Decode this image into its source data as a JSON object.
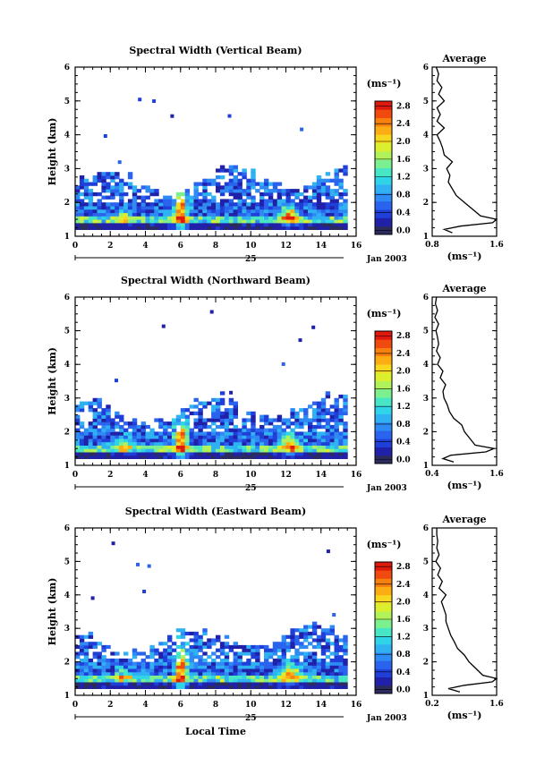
{
  "chart_data": [
    {
      "type": "heatmap",
      "title": "Spectral Width (Vertical Beam)",
      "ylabel": "Height (km)",
      "xlabel": "",
      "xlim": [
        0,
        16
      ],
      "ylim": [
        1,
        6
      ],
      "xticks": [
        "0",
        "2",
        "4",
        "6",
        "8",
        "10",
        "12",
        "14",
        "16"
      ],
      "yticks": [
        "1",
        "2",
        "3",
        "4",
        "5",
        "6"
      ],
      "date_day": "25",
      "date_label": "Jan 2003",
      "colorbar": {
        "unit": "(ms⁻¹)",
        "ticks": [
          "0.0",
          "0.4",
          "0.8",
          "1.2",
          "1.6",
          "2.0",
          "2.4",
          "2.8"
        ],
        "range": [
          0.0,
          3.0
        ]
      },
      "profile": {
        "title": "Average",
        "xlabel": "(ms⁻¹)",
        "xticks": [
          "0.8",
          "1.6"
        ],
        "xlim": [
          0.8,
          1.6
        ],
        "ylim": [
          1,
          6
        ],
        "yticks": [
          "1",
          "2",
          "3",
          "4",
          "5",
          "6"
        ],
        "height": [
          1.1,
          1.2,
          1.3,
          1.4,
          1.5,
          1.6,
          1.8,
          2.0,
          2.2,
          2.4,
          2.6,
          2.8,
          3.0,
          3.2,
          3.4,
          3.6,
          3.8,
          4.0,
          4.2,
          4.4,
          4.6,
          4.8,
          5.0,
          5.2,
          5.4,
          5.6,
          5.8,
          6.0
        ],
        "width": [
          1.05,
          0.95,
          1.15,
          1.55,
          1.6,
          1.4,
          1.3,
          1.2,
          1.1,
          1.05,
          1.0,
          1.02,
          0.98,
          1.05,
          0.95,
          0.93,
          0.9,
          0.86,
          0.95,
          0.86,
          0.9,
          0.86,
          0.95,
          0.88,
          0.92,
          0.86,
          0.88,
          0.85
        ]
      }
    },
    {
      "type": "heatmap",
      "title": "Spectral Width (Northward Beam)",
      "ylabel": "Height (km)",
      "xlabel": "",
      "xlim": [
        0,
        16
      ],
      "ylim": [
        1,
        6
      ],
      "xticks": [
        "0",
        "2",
        "4",
        "6",
        "8",
        "10",
        "12",
        "14",
        "16"
      ],
      "yticks": [
        "1",
        "2",
        "3",
        "4",
        "5",
        "6"
      ],
      "date_day": "25",
      "date_label": "Jan 2003",
      "colorbar": {
        "unit": "(ms⁻¹)",
        "ticks": [
          "0.0",
          "0.4",
          "0.8",
          "1.2",
          "1.6",
          "2.0",
          "2.4",
          "2.8"
        ],
        "range": [
          0.0,
          3.0
        ]
      },
      "profile": {
        "title": "Average",
        "xlabel": "(ms⁻¹)",
        "xticks": [
          "0.4",
          "1.6"
        ],
        "xlim": [
          0.4,
          1.6
        ],
        "ylim": [
          1,
          6
        ],
        "yticks": [
          "1",
          "2",
          "3",
          "4",
          "5",
          "6"
        ],
        "height": [
          1.1,
          1.2,
          1.3,
          1.4,
          1.5,
          1.6,
          1.8,
          2.0,
          2.2,
          2.4,
          2.6,
          2.8,
          3.0,
          3.2,
          3.4,
          3.6,
          3.8,
          4.0,
          4.2,
          4.4,
          4.6,
          4.8,
          5.0,
          5.2,
          5.4,
          5.6,
          5.8,
          6.0
        ],
        "width": [
          0.8,
          0.6,
          0.75,
          1.4,
          1.55,
          1.2,
          1.1,
          1.0,
          0.95,
          0.8,
          0.72,
          0.68,
          0.62,
          0.6,
          0.65,
          0.55,
          0.6,
          0.5,
          0.55,
          0.48,
          0.52,
          0.5,
          0.47,
          0.52,
          0.45,
          0.5,
          0.46,
          0.48
        ]
      }
    },
    {
      "type": "heatmap",
      "title": "Spectral Width (Eastward Beam)",
      "ylabel": "Height (km)",
      "xlabel": "Local Time",
      "xlim": [
        0,
        16
      ],
      "ylim": [
        1,
        6
      ],
      "xticks": [
        "0",
        "2",
        "4",
        "6",
        "8",
        "10",
        "12",
        "14",
        "16"
      ],
      "yticks": [
        "1",
        "2",
        "3",
        "4",
        "5",
        "6"
      ],
      "date_day": "25",
      "date_label": "Jan 2003",
      "colorbar": {
        "unit": "(ms⁻¹)",
        "ticks": [
          "0.0",
          "0.4",
          "0.8",
          "1.2",
          "1.6",
          "2.0",
          "2.4",
          "2.8"
        ],
        "range": [
          0.0,
          3.0
        ]
      },
      "profile": {
        "title": "Average",
        "xlabel": "(ms⁻¹)",
        "xticks": [
          "0.2",
          "1.6"
        ],
        "xlim": [
          0.2,
          1.6
        ],
        "ylim": [
          1,
          6
        ],
        "yticks": [
          "1",
          "2",
          "3",
          "4",
          "5",
          "6"
        ],
        "height": [
          1.1,
          1.2,
          1.3,
          1.4,
          1.5,
          1.6,
          1.8,
          2.0,
          2.2,
          2.4,
          2.6,
          2.8,
          3.0,
          3.2,
          3.4,
          3.6,
          3.8,
          4.0,
          4.2,
          4.4,
          4.6,
          4.8,
          5.0,
          5.2,
          5.4,
          5.6,
          5.8,
          6.0
        ],
        "width": [
          0.8,
          0.55,
          0.9,
          1.5,
          1.6,
          1.3,
          1.15,
          1.0,
          0.9,
          0.75,
          0.68,
          0.6,
          0.55,
          0.5,
          0.5,
          0.45,
          0.4,
          0.5,
          0.35,
          0.42,
          0.32,
          0.38,
          0.28,
          0.35,
          0.3,
          0.32,
          0.3,
          0.3
        ]
      }
    }
  ]
}
